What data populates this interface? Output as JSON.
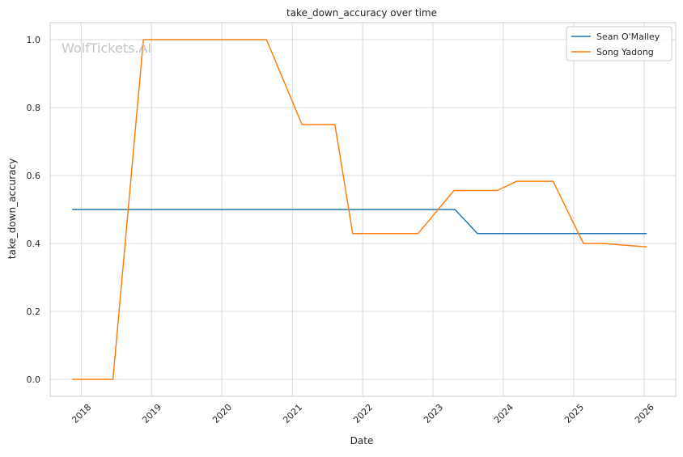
{
  "chart_data": {
    "type": "line",
    "title": "take_down_accuracy over time",
    "xlabel": "Date",
    "ylabel": "take_down_accuracy",
    "watermark": "WolfTickets.AI",
    "x_ticks": [
      "2018",
      "2019",
      "2020",
      "2021",
      "2022",
      "2023",
      "2024",
      "2025",
      "2026"
    ],
    "y_ticks": [
      "0.0",
      "0.2",
      "0.4",
      "0.6",
      "0.8",
      "1.0"
    ],
    "xlim": [
      "2017-07-24",
      "2026-06-14"
    ],
    "ylim": [
      -0.05,
      1.05
    ],
    "grid": true,
    "legend_position": "top-right",
    "series": [
      {
        "name": "Sean O'Malley",
        "color": "#1f77b4",
        "points": [
          {
            "x": "2017-11-15",
            "y": 0.5
          },
          {
            "x": "2023-04-25",
            "y": 0.5
          },
          {
            "x": "2023-08-20",
            "y": 0.429
          },
          {
            "x": "2026-01-15",
            "y": 0.429
          }
        ]
      },
      {
        "name": "Song Yadong",
        "color": "#ff7f0e",
        "points": [
          {
            "x": "2017-11-15",
            "y": 0.0
          },
          {
            "x": "2018-06-15",
            "y": 0.0
          },
          {
            "x": "2018-11-20",
            "y": 1.0
          },
          {
            "x": "2020-08-20",
            "y": 1.0
          },
          {
            "x": "2021-02-20",
            "y": 0.75
          },
          {
            "x": "2021-08-10",
            "y": 0.75
          },
          {
            "x": "2021-11-10",
            "y": 0.429
          },
          {
            "x": "2022-10-15",
            "y": 0.429
          },
          {
            "x": "2023-04-20",
            "y": 0.556
          },
          {
            "x": "2023-12-01",
            "y": 0.556
          },
          {
            "x": "2024-03-10",
            "y": 0.583
          },
          {
            "x": "2024-09-15",
            "y": 0.583
          },
          {
            "x": "2025-02-20",
            "y": 0.4
          },
          {
            "x": "2025-06-01",
            "y": 0.4
          },
          {
            "x": "2026-01-15",
            "y": 0.39
          }
        ]
      }
    ]
  }
}
